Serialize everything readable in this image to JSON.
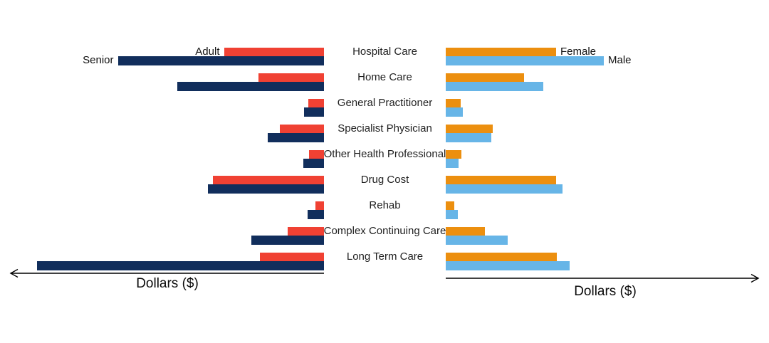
{
  "figure": {
    "kind": "population-pyramid-style tornado chart, two mirrored horizontal bar charts with shared center category labels",
    "background_color": "#ffffff",
    "text_color": "#1f1f1f",
    "axis_color": "#000000"
  },
  "labels": {
    "adult": "Adult",
    "senior": "Senior",
    "female": "Female",
    "male": "Male"
  },
  "chart_data": [
    {
      "type": "bar",
      "id": "cost-by-age-group",
      "direction": "bars-extend-left",
      "xlabel": "Dollars ($)",
      "axis_ticks": "none (unlabeled arrow axis pointing left)",
      "grid": false,
      "legend_position": "inline labels at ends of first category bars",
      "value_units": "pixel-proportional lengths (no numeric scale shown)",
      "categories": [
        "Hospital Care",
        "Home Care",
        "General Practitioner",
        "Specialist Physician",
        "Other Health Professional",
        "Drug Cost",
        "Rehab",
        "Complex Continuing Care",
        "Long Term Care"
      ],
      "series": [
        {
          "name": "Adult",
          "color": "#F04133",
          "values": [
            140,
            92,
            22,
            62,
            21,
            156,
            12,
            51,
            90
          ]
        },
        {
          "name": "Senior",
          "color": "#112E5C",
          "values": [
            289,
            206,
            28,
            79,
            29,
            163,
            23,
            102,
            403
          ]
        }
      ]
    },
    {
      "type": "bar",
      "id": "cost-by-sex",
      "direction": "bars-extend-right",
      "xlabel": "Dollars ($)",
      "axis_ticks": "none (unlabeled arrow axis pointing right)",
      "grid": false,
      "legend_position": "inline labels at ends of first category bars",
      "value_units": "pixel-proportional lengths (no numeric scale shown)",
      "categories": [
        "Hospital Care",
        "Home Care",
        "General Practitioner",
        "Specialist Physician",
        "Other Health Professional",
        "Drug Cost",
        "Rehab",
        "Complex Continuing Care",
        "Long Term Care"
      ],
      "series": [
        {
          "name": "Female",
          "color": "#EC8F0F",
          "values": [
            155,
            110,
            21,
            66,
            22,
            155,
            12,
            55,
            156
          ]
        },
        {
          "name": "Male",
          "color": "#67B5E7",
          "values": [
            222,
            137,
            24,
            64,
            18,
            164,
            17,
            87,
            174
          ]
        }
      ]
    }
  ]
}
